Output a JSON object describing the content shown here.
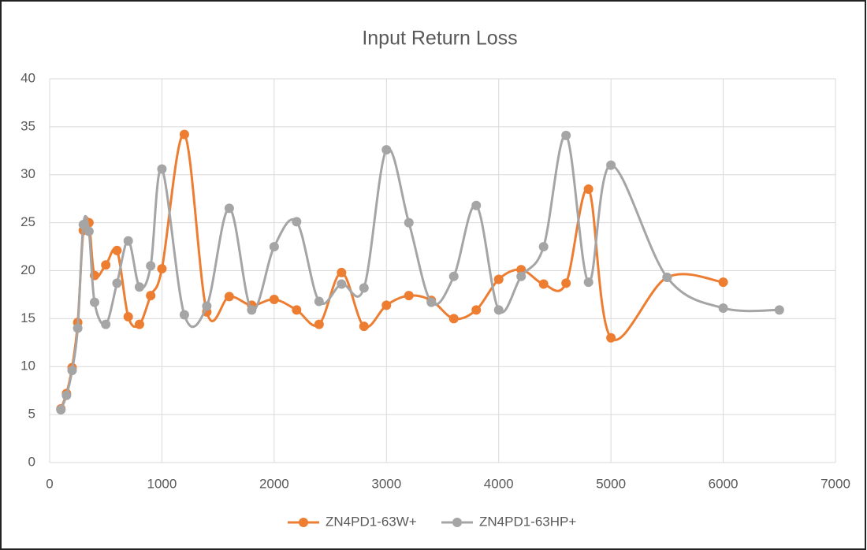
{
  "chart_data": {
    "type": "line",
    "title": "Input Return Loss",
    "xlim": [
      0,
      7000
    ],
    "xticks": [
      0,
      1000,
      2000,
      3000,
      4000,
      5000,
      6000,
      7000
    ],
    "ylim": [
      0,
      40
    ],
    "yticks": [
      0,
      5,
      10,
      15,
      20,
      25,
      30,
      35,
      40
    ],
    "grid": true,
    "smooth": true,
    "legend": "bottom",
    "series": [
      {
        "name": "ZN4PD1-63W+",
        "color": "#ed7d31",
        "x": [
          100,
          150,
          200,
          250,
          300,
          350,
          400,
          500,
          600,
          700,
          800,
          900,
          1000,
          1200,
          1400,
          1600,
          1800,
          2000,
          2200,
          2400,
          2600,
          2800,
          3000,
          3200,
          3400,
          3600,
          3800,
          4000,
          4200,
          4400,
          4600,
          4800,
          5000,
          5500,
          6000
        ],
        "values": [
          5.6,
          7.2,
          9.9,
          14.6,
          24.2,
          25.0,
          19.5,
          20.6,
          22.1,
          15.2,
          14.4,
          17.4,
          20.2,
          34.2,
          15.7,
          17.3,
          16.4,
          17.0,
          15.9,
          14.4,
          19.8,
          14.2,
          16.4,
          17.4,
          16.9,
          15.0,
          15.9,
          19.1,
          20.1,
          18.6,
          18.7,
          28.5,
          13.0,
          19.3,
          18.8
        ]
      },
      {
        "name": "ZN4PD1-63HP+",
        "color": "#a5a5a5",
        "x": [
          100,
          150,
          200,
          250,
          300,
          350,
          400,
          500,
          600,
          700,
          800,
          900,
          1000,
          1200,
          1400,
          1600,
          1800,
          2000,
          2200,
          2400,
          2600,
          2800,
          3000,
          3200,
          3400,
          3600,
          3800,
          4000,
          4200,
          4400,
          4600,
          4800,
          5000,
          5500,
          6000,
          6500
        ],
        "values": [
          5.5,
          7.0,
          9.6,
          14.0,
          24.8,
          24.1,
          16.7,
          14.4,
          18.7,
          23.1,
          18.3,
          20.5,
          30.6,
          15.4,
          16.3,
          26.5,
          15.9,
          22.5,
          25.1,
          16.8,
          18.6,
          18.2,
          32.6,
          25.0,
          16.7,
          19.4,
          26.8,
          15.9,
          19.4,
          22.5,
          34.1,
          18.8,
          31.0,
          19.3,
          16.1,
          15.9
        ]
      }
    ]
  }
}
